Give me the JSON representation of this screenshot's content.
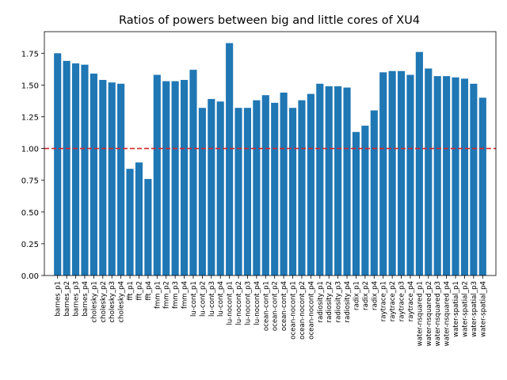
{
  "chart_data": {
    "type": "bar",
    "title": "Ratios of powers between big and little cores of XU4",
    "xlabel": "",
    "ylabel": "",
    "ylim": [
      0,
      1.92
    ],
    "yticks": [
      0.0,
      0.25,
      0.5,
      0.75,
      1.0,
      1.25,
      1.5,
      1.75
    ],
    "ytick_labels": [
      "0.00",
      "0.25",
      "0.50",
      "0.75",
      "1.00",
      "1.25",
      "1.50",
      "1.75"
    ],
    "bar_color": "#1f77b4",
    "reference_line": {
      "y": 1.0,
      "color": "#d62728",
      "style": "dashed"
    },
    "categories": [
      "barnes_p1",
      "barnes_p2",
      "barnes_p3",
      "barnes_p4",
      "cholesky_p1",
      "cholesky_p2",
      "cholesky_p3",
      "cholesky_p4",
      "fft_p1",
      "fft_p2",
      "fft_p4",
      "fmm_p1",
      "fmm_p2",
      "fmm_p3",
      "fmm_p4",
      "lu-cont_p1",
      "lu-cont_p2",
      "lu-cont_p3",
      "lu-cont_p4",
      "lu-nocont_p1",
      "lu-nocont_p2",
      "lu-nocont_p3",
      "lu-nocont_p4",
      "ocean-cont_p1",
      "ocean-cont_p2",
      "ocean-cont_p4",
      "ocean-nocont_p1",
      "ocean-nocont_p2",
      "ocean-nocont_p4",
      "radiosity_p1",
      "radiosity_p2",
      "radiosity_p3",
      "radiosity_p4",
      "radix_p1",
      "radix_p2",
      "radix_p4",
      "raytrace_p1",
      "raytrace_p2",
      "raytrace_p3",
      "raytrace_p4",
      "water-nsquared_p1",
      "water-nsquared_p2",
      "water-nsquared_p3",
      "water-nsquared_p4",
      "water-spatial_p1",
      "water-spatial_p2",
      "water-spatial_p3",
      "water-spatial_p4"
    ],
    "values": [
      1.75,
      1.69,
      1.67,
      1.66,
      1.59,
      1.54,
      1.52,
      1.51,
      0.84,
      0.89,
      0.76,
      1.58,
      1.53,
      1.53,
      1.54,
      1.62,
      1.32,
      1.39,
      1.37,
      1.83,
      1.32,
      1.32,
      1.38,
      1.42,
      1.36,
      1.44,
      1.32,
      1.38,
      1.43,
      1.51,
      1.49,
      1.49,
      1.48,
      1.13,
      1.18,
      1.3,
      1.6,
      1.61,
      1.61,
      1.58,
      1.76,
      1.63,
      1.57,
      1.57,
      1.56,
      1.55,
      1.51,
      1.4
    ]
  }
}
